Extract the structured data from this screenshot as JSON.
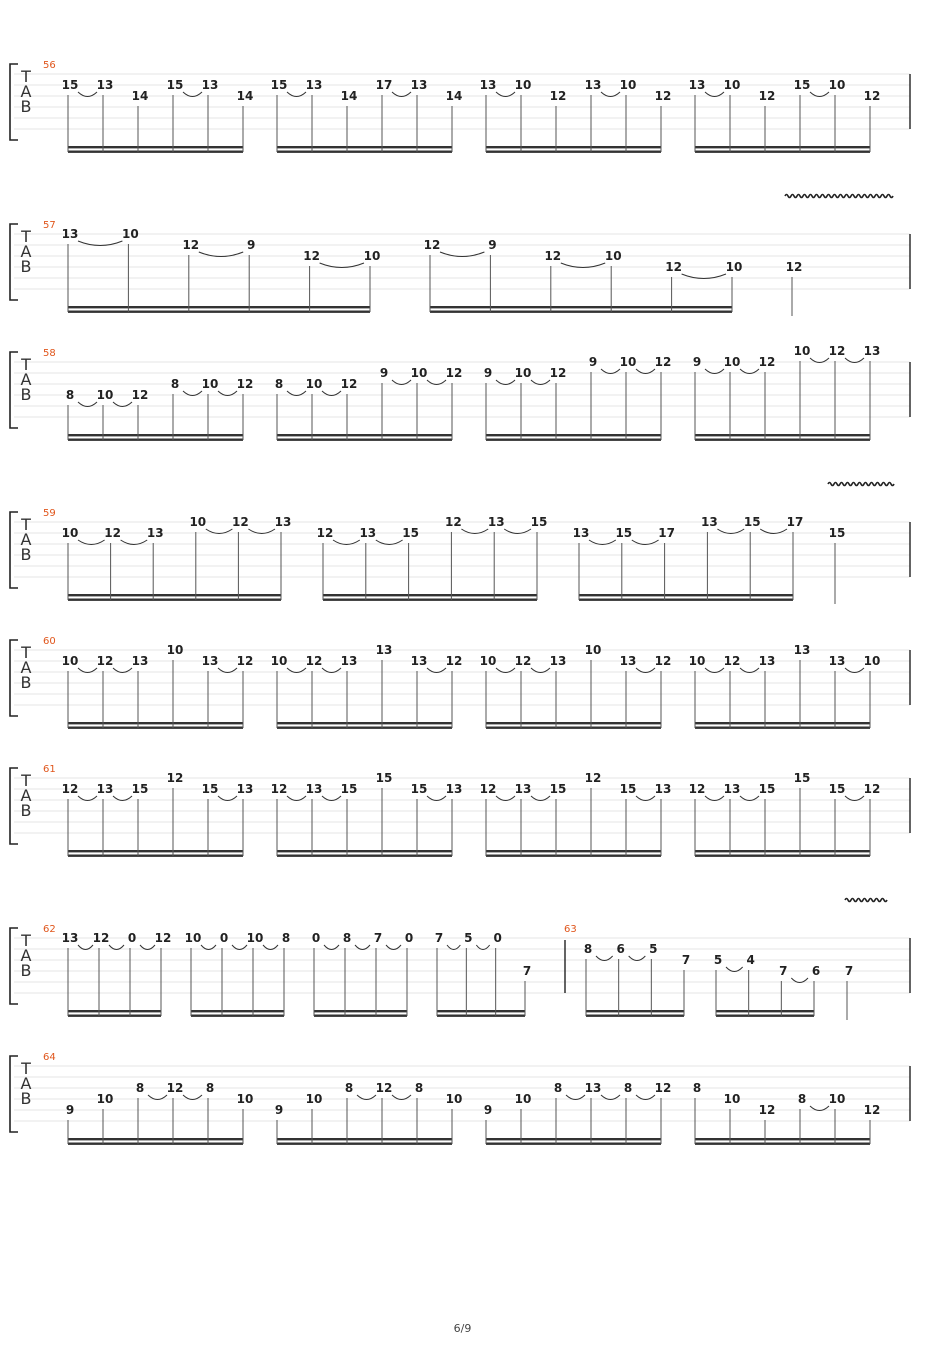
{
  "page_number": "6/9",
  "clef_letters": [
    "T",
    "A",
    "B"
  ],
  "systems": [
    {
      "measure": "56",
      "groups": [
        [
          [
            "15",
            1
          ],
          [
            "13",
            1
          ],
          [
            "14",
            2
          ],
          [
            "15",
            1
          ],
          [
            "13",
            1
          ],
          [
            "14",
            2
          ]
        ],
        [
          [
            "15",
            1
          ],
          [
            "13",
            1
          ],
          [
            "14",
            2
          ],
          [
            "17",
            1
          ],
          [
            "13",
            1
          ],
          [
            "14",
            2
          ]
        ],
        [
          [
            "13",
            1
          ],
          [
            "10",
            1
          ],
          [
            "12",
            2
          ],
          [
            "13",
            1
          ],
          [
            "10",
            1
          ],
          [
            "12",
            2
          ]
        ],
        [
          [
            "13",
            1
          ],
          [
            "10",
            1
          ],
          [
            "12",
            2
          ],
          [
            "15",
            1
          ],
          [
            "10",
            1
          ],
          [
            "12",
            2
          ]
        ]
      ]
    },
    {
      "measure": "57",
      "groups": [
        [
          [
            "13",
            0
          ],
          [
            "10",
            0
          ],
          [
            "12",
            1
          ],
          [
            "9",
            1
          ],
          [
            "12",
            2
          ],
          [
            "10",
            2
          ]
        ],
        [
          [
            "12",
            1
          ],
          [
            "9",
            1
          ],
          [
            "12",
            2
          ],
          [
            "10",
            2
          ],
          [
            "12",
            3
          ],
          [
            "10",
            3
          ]
        ],
        [
          [
            "12",
            3
          ]
        ]
      ]
    },
    {
      "measure": "58",
      "groups": [
        [
          [
            "8",
            3
          ],
          [
            "10",
            3
          ],
          [
            "12",
            3
          ],
          [
            "8",
            2
          ],
          [
            "10",
            2
          ],
          [
            "12",
            2
          ]
        ],
        [
          [
            "8",
            2
          ],
          [
            "10",
            2
          ],
          [
            "12",
            2
          ],
          [
            "9",
            1
          ],
          [
            "10",
            1
          ],
          [
            "12",
            1
          ]
        ],
        [
          [
            "9",
            1
          ],
          [
            "10",
            1
          ],
          [
            "12",
            1
          ],
          [
            "9",
            0
          ],
          [
            "10",
            0
          ],
          [
            "12",
            0
          ]
        ],
        [
          [
            "9",
            0
          ],
          [
            "10",
            0
          ],
          [
            "12",
            0
          ],
          [
            "10",
            -1
          ],
          [
            "12",
            -1
          ],
          [
            "13",
            -1
          ]
        ]
      ]
    },
    {
      "measure": "59",
      "groups": [
        [
          [
            "10",
            1
          ],
          [
            "12",
            1
          ],
          [
            "13",
            1
          ],
          [
            "10",
            0
          ],
          [
            "12",
            0
          ],
          [
            "13",
            0
          ]
        ],
        [
          [
            "12",
            1
          ],
          [
            "13",
            1
          ],
          [
            "15",
            1
          ],
          [
            "12",
            0
          ],
          [
            "13",
            0
          ],
          [
            "15",
            0
          ]
        ],
        [
          [
            "13",
            1
          ],
          [
            "15",
            1
          ],
          [
            "17",
            1
          ],
          [
            "13",
            0
          ],
          [
            "15",
            0
          ],
          [
            "17",
            0
          ]
        ],
        [
          [
            "15",
            1
          ]
        ]
      ]
    },
    {
      "measure": "60",
      "groups": [
        [
          [
            "10",
            1
          ],
          [
            "12",
            1
          ],
          [
            "13",
            1
          ],
          [
            "10",
            0
          ],
          [
            "13",
            1
          ],
          [
            "12",
            1
          ]
        ],
        [
          [
            "10",
            1
          ],
          [
            "12",
            1
          ],
          [
            "13",
            1
          ],
          [
            "13",
            0
          ],
          [
            "13",
            1
          ],
          [
            "12",
            1
          ]
        ],
        [
          [
            "10",
            1
          ],
          [
            "12",
            1
          ],
          [
            "13",
            1
          ],
          [
            "10",
            0
          ],
          [
            "13",
            1
          ],
          [
            "12",
            1
          ]
        ],
        [
          [
            "10",
            1
          ],
          [
            "12",
            1
          ],
          [
            "13",
            1
          ],
          [
            "13",
            0
          ],
          [
            "13",
            1
          ],
          [
            "10",
            1
          ]
        ]
      ]
    },
    {
      "measure": "61",
      "groups": [
        [
          [
            "12",
            1
          ],
          [
            "13",
            1
          ],
          [
            "15",
            1
          ],
          [
            "12",
            0
          ],
          [
            "15",
            1
          ],
          [
            "13",
            1
          ]
        ],
        [
          [
            "12",
            1
          ],
          [
            "13",
            1
          ],
          [
            "15",
            1
          ],
          [
            "15",
            0
          ],
          [
            "15",
            1
          ],
          [
            "13",
            1
          ]
        ],
        [
          [
            "12",
            1
          ],
          [
            "13",
            1
          ],
          [
            "15",
            1
          ],
          [
            "12",
            0
          ],
          [
            "15",
            1
          ],
          [
            "13",
            1
          ]
        ],
        [
          [
            "12",
            1
          ],
          [
            "13",
            1
          ],
          [
            "15",
            1
          ],
          [
            "15",
            0
          ],
          [
            "15",
            1
          ],
          [
            "12",
            1
          ]
        ]
      ]
    },
    {
      "measure": "62",
      "measure_b": "63",
      "groups": [
        [
          [
            "13",
            0
          ],
          [
            "12",
            0
          ],
          [
            "0",
            0
          ],
          [
            "12",
            0
          ]
        ],
        [
          [
            "10",
            0
          ],
          [
            "0",
            0
          ],
          [
            "10",
            0
          ],
          [
            "8",
            0
          ]
        ],
        [
          [
            "0",
            0
          ],
          [
            "8",
            0
          ],
          [
            "7",
            0
          ],
          [
            "0",
            0
          ]
        ],
        [
          [
            "7",
            0
          ],
          [
            "5",
            0
          ],
          [
            "0",
            0
          ],
          [
            "7",
            3
          ]
        ],
        [
          [
            "8",
            1
          ],
          [
            "6",
            1
          ],
          [
            "5",
            1
          ],
          [
            "7",
            2
          ]
        ],
        [
          [
            "5",
            2
          ],
          [
            "4",
            2
          ],
          [
            "7",
            3
          ],
          [
            "6",
            3
          ]
        ],
        [
          [
            "7",
            3
          ]
        ]
      ]
    },
    {
      "measure": "64",
      "groups": [
        [
          [
            "9",
            4
          ],
          [
            "10",
            3
          ],
          [
            "8",
            2
          ],
          [
            "12",
            2
          ],
          [
            "8",
            2
          ],
          [
            "10",
            3
          ]
        ],
        [
          [
            "9",
            4
          ],
          [
            "10",
            3
          ],
          [
            "8",
            2
          ],
          [
            "12",
            2
          ],
          [
            "8",
            2
          ],
          [
            "10",
            3
          ]
        ],
        [
          [
            "9",
            4
          ],
          [
            "10",
            3
          ],
          [
            "8",
            2
          ],
          [
            "13",
            2
          ],
          [
            "8",
            2
          ],
          [
            "12",
            2
          ]
        ],
        [
          [
            "8",
            2
          ],
          [
            "10",
            3
          ],
          [
            "12",
            4
          ],
          [
            "8",
            3
          ],
          [
            "10",
            3
          ],
          [
            "12",
            4
          ]
        ]
      ]
    }
  ]
}
